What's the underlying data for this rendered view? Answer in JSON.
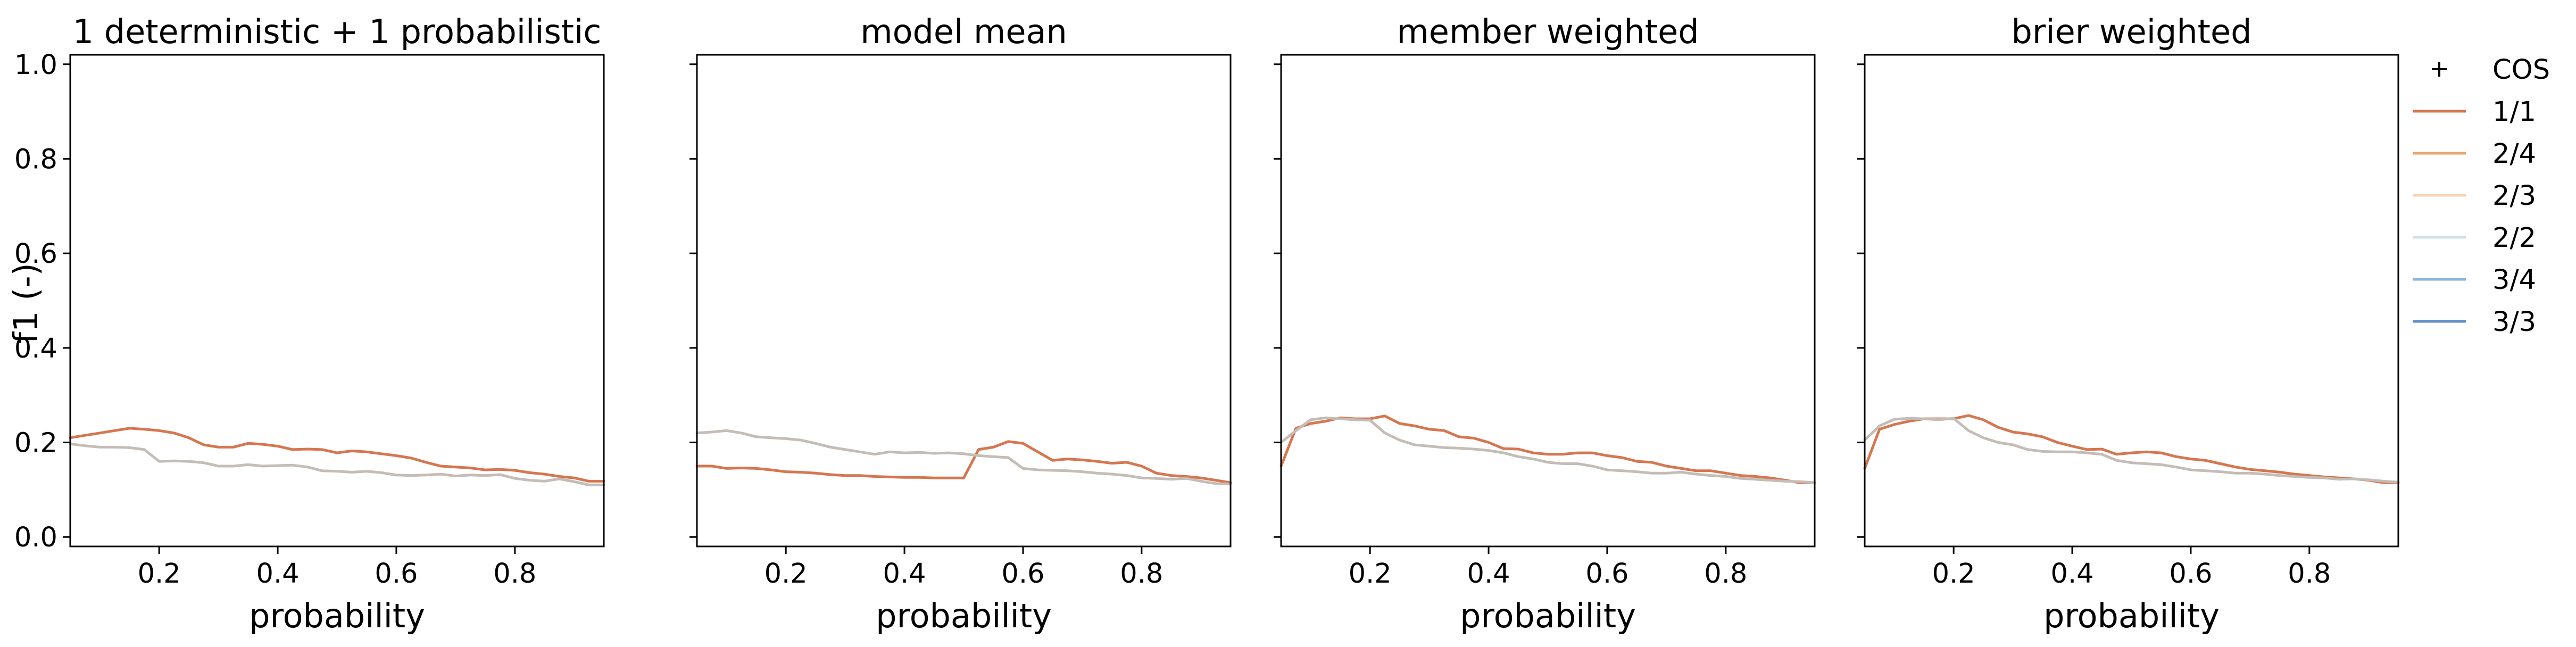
{
  "figure": {
    "ylabel": "f1 (-)",
    "ylim": [
      -0.02,
      1.02
    ],
    "xlim": [
      0.05,
      0.95
    ],
    "yticks": [
      "0.0",
      "0.2",
      "0.4",
      "0.6",
      "0.8",
      "1.0"
    ],
    "ytick_values": [
      0.0,
      0.2,
      0.4,
      0.6,
      0.8,
      1.0
    ],
    "xticks": [
      "0.2",
      "0.4",
      "0.6",
      "0.8"
    ],
    "xtick_values": [
      0.2,
      0.4,
      0.6,
      0.8
    ]
  },
  "legend": {
    "placement": "outside-right",
    "entries": [
      {
        "label": "COS",
        "marker": "plus",
        "color": "#000000"
      },
      {
        "label": "1/1",
        "color": "#d6764f"
      },
      {
        "label": "2/4",
        "color": "#e9a46d"
      },
      {
        "label": "2/3",
        "color": "#f5d3b4"
      },
      {
        "label": "2/2",
        "color": "#d3dfe8"
      },
      {
        "label": "3/4",
        "color": "#8bb5d8"
      },
      {
        "label": "3/3",
        "color": "#5f8fc7"
      }
    ]
  },
  "chart_data": [
    {
      "type": "line",
      "title": "1 deterministic + 1 probabilistic",
      "xlabel": "probability",
      "ylabel": "f1 (-)",
      "x": [
        0.05,
        0.075,
        0.1,
        0.125,
        0.15,
        0.175,
        0.2,
        0.225,
        0.25,
        0.275,
        0.3,
        0.325,
        0.35,
        0.375,
        0.4,
        0.425,
        0.45,
        0.475,
        0.5,
        0.525,
        0.55,
        0.575,
        0.6,
        0.625,
        0.65,
        0.675,
        0.7,
        0.725,
        0.75,
        0.775,
        0.8,
        0.825,
        0.85,
        0.875,
        0.9,
        0.925,
        0.95
      ],
      "series": [
        {
          "name": "1/1",
          "color": "#d6764f",
          "values": [
            0.21,
            0.215,
            0.22,
            0.225,
            0.23,
            0.228,
            0.225,
            0.22,
            0.21,
            0.195,
            0.19,
            0.19,
            0.198,
            0.196,
            0.192,
            0.185,
            0.186,
            0.185,
            0.178,
            0.182,
            0.18,
            0.176,
            0.172,
            0.167,
            0.158,
            0.15,
            0.148,
            0.146,
            0.142,
            0.143,
            0.141,
            0.136,
            0.133,
            0.128,
            0.125,
            0.118,
            0.118
          ]
        },
        {
          "name": "",
          "color": "#c4bcb6",
          "values": [
            0.197,
            0.193,
            0.19,
            0.19,
            0.189,
            0.185,
            0.16,
            0.161,
            0.16,
            0.157,
            0.15,
            0.15,
            0.153,
            0.15,
            0.151,
            0.152,
            0.148,
            0.14,
            0.139,
            0.137,
            0.139,
            0.136,
            0.131,
            0.13,
            0.131,
            0.133,
            0.129,
            0.131,
            0.13,
            0.132,
            0.124,
            0.12,
            0.118,
            0.123,
            0.117,
            0.11,
            0.11
          ]
        }
      ]
    },
    {
      "type": "line",
      "title": "model mean",
      "xlabel": "probability",
      "x": [
        0.05,
        0.075,
        0.1,
        0.125,
        0.15,
        0.175,
        0.2,
        0.225,
        0.25,
        0.275,
        0.3,
        0.325,
        0.35,
        0.375,
        0.4,
        0.425,
        0.45,
        0.475,
        0.5,
        0.525,
        0.55,
        0.575,
        0.6,
        0.625,
        0.65,
        0.675,
        0.7,
        0.725,
        0.75,
        0.775,
        0.8,
        0.825,
        0.85,
        0.875,
        0.9,
        0.925,
        0.95
      ],
      "series": [
        {
          "name": "1/1",
          "color": "#d6764f",
          "values": [
            0.15,
            0.15,
            0.145,
            0.146,
            0.145,
            0.142,
            0.138,
            0.137,
            0.135,
            0.132,
            0.13,
            0.13,
            0.128,
            0.127,
            0.126,
            0.126,
            0.125,
            0.125,
            0.125,
            0.185,
            0.19,
            0.202,
            0.198,
            0.18,
            0.162,
            0.165,
            0.163,
            0.16,
            0.156,
            0.158,
            0.15,
            0.135,
            0.13,
            0.128,
            0.125,
            0.12,
            0.115
          ]
        },
        {
          "name": "",
          "color": "#c4bcb6",
          "values": [
            0.22,
            0.222,
            0.225,
            0.22,
            0.212,
            0.21,
            0.208,
            0.205,
            0.198,
            0.19,
            0.185,
            0.18,
            0.175,
            0.18,
            0.178,
            0.179,
            0.177,
            0.178,
            0.176,
            0.172,
            0.17,
            0.168,
            0.145,
            0.142,
            0.141,
            0.14,
            0.138,
            0.135,
            0.133,
            0.13,
            0.125,
            0.124,
            0.122,
            0.124,
            0.118,
            0.113,
            0.112
          ]
        }
      ]
    },
    {
      "type": "line",
      "title": "member weighted",
      "xlabel": "probability",
      "x": [
        0.05,
        0.075,
        0.1,
        0.125,
        0.15,
        0.175,
        0.2,
        0.225,
        0.25,
        0.275,
        0.3,
        0.325,
        0.35,
        0.375,
        0.4,
        0.425,
        0.45,
        0.475,
        0.5,
        0.525,
        0.55,
        0.575,
        0.6,
        0.625,
        0.65,
        0.675,
        0.7,
        0.725,
        0.75,
        0.775,
        0.8,
        0.825,
        0.85,
        0.875,
        0.9,
        0.925,
        0.95
      ],
      "series": [
        {
          "name": "1/1",
          "color": "#d6764f",
          "values": [
            0.15,
            0.23,
            0.24,
            0.245,
            0.252,
            0.25,
            0.25,
            0.256,
            0.24,
            0.235,
            0.228,
            0.225,
            0.212,
            0.209,
            0.2,
            0.187,
            0.186,
            0.178,
            0.175,
            0.175,
            0.178,
            0.178,
            0.172,
            0.168,
            0.16,
            0.158,
            0.15,
            0.145,
            0.14,
            0.14,
            0.135,
            0.13,
            0.128,
            0.125,
            0.12,
            0.115,
            0.115
          ]
        },
        {
          "name": "",
          "color": "#c4bcb6",
          "values": [
            0.2,
            0.225,
            0.248,
            0.252,
            0.25,
            0.248,
            0.247,
            0.22,
            0.205,
            0.195,
            0.192,
            0.189,
            0.188,
            0.186,
            0.183,
            0.178,
            0.17,
            0.165,
            0.158,
            0.155,
            0.155,
            0.15,
            0.142,
            0.14,
            0.138,
            0.135,
            0.135,
            0.137,
            0.133,
            0.13,
            0.128,
            0.124,
            0.122,
            0.12,
            0.118,
            0.117,
            0.115
          ]
        }
      ]
    },
    {
      "type": "line",
      "title": "brier weighted",
      "xlabel": "probability",
      "x": [
        0.05,
        0.075,
        0.1,
        0.125,
        0.15,
        0.175,
        0.2,
        0.225,
        0.25,
        0.275,
        0.3,
        0.325,
        0.35,
        0.375,
        0.4,
        0.425,
        0.45,
        0.475,
        0.5,
        0.525,
        0.55,
        0.575,
        0.6,
        0.625,
        0.65,
        0.675,
        0.7,
        0.725,
        0.75,
        0.775,
        0.8,
        0.825,
        0.85,
        0.875,
        0.9,
        0.925,
        0.95
      ],
      "series": [
        {
          "name": "1/1",
          "color": "#d6764f",
          "values": [
            0.145,
            0.228,
            0.238,
            0.245,
            0.25,
            0.25,
            0.25,
            0.257,
            0.248,
            0.232,
            0.222,
            0.218,
            0.212,
            0.2,
            0.192,
            0.185,
            0.186,
            0.175,
            0.178,
            0.18,
            0.178,
            0.17,
            0.165,
            0.162,
            0.155,
            0.148,
            0.143,
            0.14,
            0.137,
            0.133,
            0.13,
            0.127,
            0.125,
            0.123,
            0.12,
            0.115,
            0.115
          ]
        },
        {
          "name": "",
          "color": "#c4bcb6",
          "values": [
            0.205,
            0.235,
            0.249,
            0.251,
            0.25,
            0.248,
            0.251,
            0.225,
            0.21,
            0.2,
            0.195,
            0.185,
            0.181,
            0.18,
            0.18,
            0.178,
            0.175,
            0.162,
            0.157,
            0.155,
            0.153,
            0.148,
            0.142,
            0.14,
            0.138,
            0.135,
            0.135,
            0.133,
            0.13,
            0.128,
            0.126,
            0.125,
            0.122,
            0.123,
            0.121,
            0.118,
            0.116
          ]
        }
      ]
    }
  ]
}
